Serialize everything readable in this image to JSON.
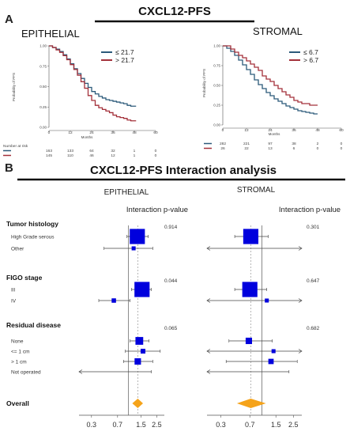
{
  "panel_a": {
    "label": "A",
    "title": "CXCL12-PFS",
    "colors": {
      "blue": "#2c5a7a",
      "red": "#a3303a"
    }
  },
  "panel_b": {
    "label": "B",
    "title": "CXCL12-PFS Interaction analysis",
    "colors": {
      "box": "#0000dd",
      "diamond": "#f5a31a",
      "line": "#444444"
    }
  },
  "chart_data": [
    {
      "type": "line",
      "panel": "A",
      "title": "EPITHELIAL",
      "xlabel": "Months",
      "ylabel": "Probability of PFS",
      "xlim": [
        0,
        60
      ],
      "ylim": [
        0,
        1
      ],
      "xticks": [
        "0",
        "12",
        "24",
        "36",
        "48",
        "60"
      ],
      "yticks": [
        "0.00",
        "0.25",
        "0.50",
        "0.75",
        "1.00"
      ],
      "legend_position": "top-right",
      "series": [
        {
          "name": "≤ 21.7",
          "color": "#2c5a7a",
          "points": [
            [
              0,
              1.0
            ],
            [
              2,
              0.98
            ],
            [
              4,
              0.96
            ],
            [
              6,
              0.93
            ],
            [
              8,
              0.89
            ],
            [
              10,
              0.84
            ],
            [
              12,
              0.78
            ],
            [
              14,
              0.72
            ],
            [
              16,
              0.66
            ],
            [
              18,
              0.6
            ],
            [
              20,
              0.54
            ],
            [
              22,
              0.49
            ],
            [
              24,
              0.44
            ],
            [
              26,
              0.41
            ],
            [
              28,
              0.38
            ],
            [
              30,
              0.36
            ],
            [
              32,
              0.34
            ],
            [
              34,
              0.33
            ],
            [
              36,
              0.32
            ],
            [
              38,
              0.31
            ],
            [
              40,
              0.3
            ],
            [
              42,
              0.29
            ],
            [
              44,
              0.27
            ],
            [
              46,
              0.26
            ],
            [
              48,
              0.26
            ],
            [
              49,
              0.26
            ]
          ]
        },
        {
          "name": "> 21.7",
          "color": "#a3303a",
          "points": [
            [
              0,
              1.0
            ],
            [
              2,
              0.98
            ],
            [
              4,
              0.95
            ],
            [
              6,
              0.92
            ],
            [
              8,
              0.88
            ],
            [
              10,
              0.83
            ],
            [
              12,
              0.77
            ],
            [
              14,
              0.71
            ],
            [
              16,
              0.64
            ],
            [
              18,
              0.56
            ],
            [
              20,
              0.48
            ],
            [
              22,
              0.39
            ],
            [
              24,
              0.33
            ],
            [
              26,
              0.27
            ],
            [
              28,
              0.24
            ],
            [
              30,
              0.22
            ],
            [
              32,
              0.2
            ],
            [
              34,
              0.18
            ],
            [
              36,
              0.15
            ],
            [
              38,
              0.13
            ],
            [
              40,
              0.12
            ],
            [
              42,
              0.11
            ],
            [
              44,
              0.09
            ],
            [
              46,
              0.08
            ],
            [
              48,
              0.08
            ],
            [
              49,
              0.08
            ]
          ]
        }
      ],
      "risk_table": {
        "label": "Number at risk",
        "times": [
          0,
          12,
          24,
          36,
          48,
          60
        ],
        "rows": [
          {
            "series": "≤ 21.7",
            "values": [
              "163",
              "133",
              "64",
              "32",
              "1",
              "0"
            ]
          },
          {
            "series": "> 21.7",
            "values": [
              "145",
              "110",
              "46",
              "12",
              "1",
              "0"
            ]
          }
        ]
      }
    },
    {
      "type": "line",
      "panel": "A",
      "title": "STROMAL",
      "xlabel": "Months",
      "ylabel": "Probability of PFS",
      "xlim": [
        0,
        60
      ],
      "ylim": [
        0,
        1
      ],
      "xticks": [
        "0",
        "12",
        "24",
        "36",
        "48",
        "60"
      ],
      "yticks": [
        "0.00",
        "0.25",
        "0.50",
        "0.75",
        "1.00"
      ],
      "legend_position": "top-right",
      "series": [
        {
          "name": "≤ 6.7",
          "color": "#2c5a7a",
          "points": [
            [
              0,
              1.0
            ],
            [
              2,
              0.97
            ],
            [
              4,
              0.93
            ],
            [
              6,
              0.88
            ],
            [
              8,
              0.82
            ],
            [
              10,
              0.76
            ],
            [
              12,
              0.7
            ],
            [
              14,
              0.64
            ],
            [
              16,
              0.57
            ],
            [
              18,
              0.51
            ],
            [
              20,
              0.46
            ],
            [
              22,
              0.41
            ],
            [
              24,
              0.37
            ],
            [
              26,
              0.33
            ],
            [
              28,
              0.3
            ],
            [
              30,
              0.27
            ],
            [
              32,
              0.24
            ],
            [
              34,
              0.22
            ],
            [
              36,
              0.2
            ],
            [
              38,
              0.18
            ],
            [
              40,
              0.17
            ],
            [
              42,
              0.16
            ],
            [
              44,
              0.15
            ],
            [
              46,
              0.14
            ],
            [
              48,
              0.14
            ]
          ]
        },
        {
          "name": "> 6.7",
          "color": "#a3303a",
          "points": [
            [
              0,
              1.0
            ],
            [
              2,
              1.0
            ],
            [
              4,
              0.96
            ],
            [
              6,
              0.92
            ],
            [
              8,
              0.88
            ],
            [
              10,
              0.85
            ],
            [
              12,
              0.81
            ],
            [
              14,
              0.77
            ],
            [
              16,
              0.73
            ],
            [
              18,
              0.69
            ],
            [
              20,
              0.62
            ],
            [
              22,
              0.58
            ],
            [
              24,
              0.55
            ],
            [
              26,
              0.5
            ],
            [
              28,
              0.46
            ],
            [
              30,
              0.42
            ],
            [
              32,
              0.38
            ],
            [
              34,
              0.35
            ],
            [
              36,
              0.31
            ],
            [
              38,
              0.29
            ],
            [
              40,
              0.27
            ],
            [
              42,
              0.27
            ],
            [
              44,
              0.25
            ],
            [
              46,
              0.25
            ],
            [
              48,
              0.25
            ]
          ]
        }
      ],
      "risk_table": {
        "times": [
          0,
          12,
          24,
          36,
          48,
          60
        ],
        "rows": [
          {
            "series": "≤ 6.7",
            "values": [
              "282",
              "221",
              "97",
              "38",
              "2",
              "0"
            ]
          },
          {
            "series": "> 6.7",
            "values": [
              "26",
              "22",
              "13",
              "6",
              "0",
              "0"
            ]
          }
        ]
      }
    },
    {
      "type": "forest",
      "panel": "B",
      "title": "EPITHELIAL",
      "column_header": "Interaction p-value",
      "x_scale": "log",
      "xticks": [
        "0.3",
        "0.7",
        "1.5",
        "2.5"
      ],
      "xlim": [
        0.2,
        3.2
      ],
      "groups": [
        {
          "label": "Tumor histology",
          "p_value": "0.914",
          "rows": [
            {
              "label": "High Grade serous",
              "est": 1.33,
              "lo": 0.95,
              "hi": 1.9,
              "weight": 0.95
            },
            {
              "label": "Other",
              "est": 1.18,
              "lo": 0.45,
              "hi": 2.2,
              "weight": 0.12
            }
          ]
        },
        {
          "label": "FIGO stage",
          "p_value": "0.044",
          "rows": [
            {
              "label": "III",
              "est": 1.55,
              "lo": 1.1,
              "hi": 2.1,
              "weight": 0.95
            },
            {
              "label": "IV",
              "est": 0.62,
              "lo": 0.38,
              "hi": 1.05,
              "weight": 0.15
            }
          ]
        },
        {
          "label": "Residual disease",
          "p_value": "0.065",
          "rows": [
            {
              "label": "None",
              "est": 1.42,
              "lo": 1.05,
              "hi": 1.95,
              "weight": 0.4
            },
            {
              "label": "<= 1 cm",
              "est": 1.6,
              "lo": 0.9,
              "hi": 2.8,
              "weight": 0.18
            },
            {
              "label": "> 1 cm",
              "est": 1.35,
              "lo": 0.85,
              "hi": 2.2,
              "weight": 0.3
            },
            {
              "label": "Not operated",
              "est": 0.75,
              "lo": 0.2,
              "hi": 2.1,
              "weight": 0.0,
              "arrow_left": true
            }
          ]
        }
      ],
      "overall": {
        "label": "Overall",
        "est": 1.35,
        "lo": 1.13,
        "hi": 1.6
      }
    },
    {
      "type": "forest",
      "panel": "B",
      "title": "STROMAL",
      "column_header": "Interaction p-value",
      "x_scale": "log",
      "xticks": [
        "0.3",
        "0.7",
        "1.5",
        "2.5"
      ],
      "xlim": [
        0.2,
        3.2
      ],
      "groups": [
        {
          "label": "Tumor histology",
          "p_value": "0.301",
          "rows": [
            {
              "est": 0.72,
              "lo": 0.45,
              "hi": 1.2,
              "weight": 0.95
            },
            {
              "est": 0.75,
              "lo": 0.2,
              "hi": 3.2,
              "weight": 0.0,
              "arrow_left": true,
              "arrow_right": true
            }
          ]
        },
        {
          "label": "FIGO stage",
          "p_value": "0.647",
          "rows": [
            {
              "est": 0.7,
              "lo": 0.45,
              "hi": 1.15,
              "weight": 0.95
            },
            {
              "est": 1.15,
              "lo": 0.2,
              "hi": 3.2,
              "weight": 0.12,
              "arrow_left": true,
              "arrow_right": true
            }
          ]
        },
        {
          "label": "Residual disease",
          "p_value": "0.682",
          "rows": [
            {
              "est": 0.68,
              "lo": 0.38,
              "hi": 1.35,
              "weight": 0.3
            },
            {
              "est": 1.4,
              "lo": 0.2,
              "hi": 3.2,
              "weight": 0.12,
              "arrow_left": true,
              "arrow_right": true
            },
            {
              "est": 1.3,
              "lo": 0.35,
              "hi": 2.8,
              "weight": 0.22
            },
            {
              "est": 0.75,
              "lo": 0.2,
              "hi": 2.2,
              "weight": 0.0,
              "arrow_left": true
            }
          ]
        }
      ],
      "overall": {
        "est": 0.72,
        "lo": 0.48,
        "hi": 1.12
      }
    }
  ]
}
